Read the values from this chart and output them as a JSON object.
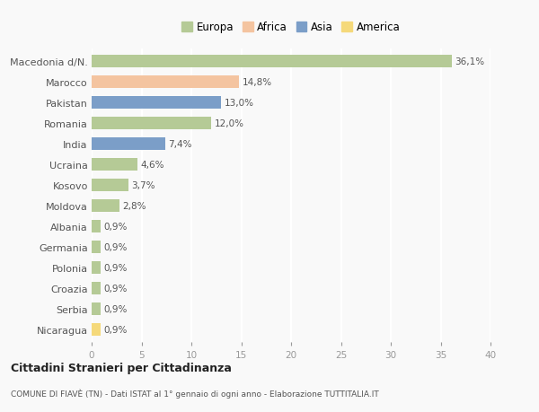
{
  "countries": [
    "Macedonia d/N.",
    "Marocco",
    "Pakistan",
    "Romania",
    "India",
    "Ucraina",
    "Kosovo",
    "Moldova",
    "Albania",
    "Germania",
    "Polonia",
    "Croazia",
    "Serbia",
    "Nicaragua"
  ],
  "values": [
    36.1,
    14.8,
    13.0,
    12.0,
    7.4,
    4.6,
    3.7,
    2.8,
    0.9,
    0.9,
    0.9,
    0.9,
    0.9,
    0.9
  ],
  "labels": [
    "36,1%",
    "14,8%",
    "13,0%",
    "12,0%",
    "7,4%",
    "4,6%",
    "3,7%",
    "2,8%",
    "0,9%",
    "0,9%",
    "0,9%",
    "0,9%",
    "0,9%",
    "0,9%"
  ],
  "continents": [
    "Europa",
    "Africa",
    "Asia",
    "Europa",
    "Asia",
    "Europa",
    "Europa",
    "Europa",
    "Europa",
    "Europa",
    "Europa",
    "Europa",
    "Europa",
    "America"
  ],
  "colors": {
    "Europa": "#b5ca96",
    "Africa": "#f4c4a0",
    "Asia": "#7b9ec8",
    "America": "#f5d97a"
  },
  "legend_colors": {
    "Europa": "#b5ca96",
    "Africa": "#f4c4a0",
    "Asia": "#7b9ec8",
    "America": "#f5d97a"
  },
  "xlim": [
    0,
    40
  ],
  "xticks": [
    0,
    5,
    10,
    15,
    20,
    25,
    30,
    35,
    40
  ],
  "title": "Cittadini Stranieri per Cittadinanza",
  "subtitle": "COMUNE DI FIAVÈ (TN) - Dati ISTAT al 1° gennaio di ogni anno - Elaborazione TUTTITALIA.IT",
  "background_color": "#f9f9f9",
  "grid_color": "#ffffff",
  "bar_height": 0.65,
  "label_fontsize": 7.5,
  "ytick_fontsize": 8,
  "xtick_fontsize": 7.5
}
